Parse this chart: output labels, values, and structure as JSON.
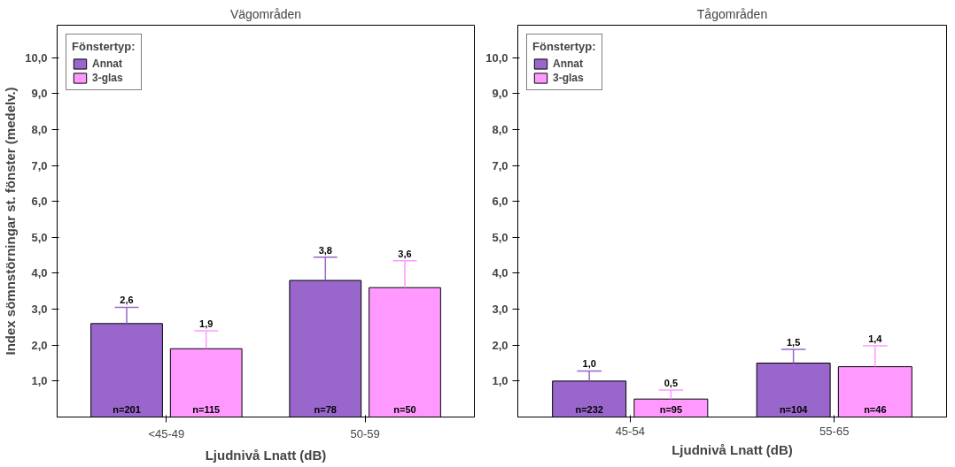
{
  "chart_data": [
    {
      "type": "bar",
      "title": "Vägområden",
      "xlabel": "Ljudnivå Lnatt (dB)",
      "ylabel": "Index sömnstörningar st. fönster (medelv.)",
      "legend_title": "Fönstertyp:",
      "legend": "top left",
      "grid": false,
      "categories": [
        "<45-49",
        "50-59"
      ],
      "ylim": [
        0,
        10.9
      ],
      "yticks": [
        {
          "value": 1,
          "label": "1,0"
        },
        {
          "value": 2,
          "label": "2,0"
        },
        {
          "value": 3,
          "label": "3,0"
        },
        {
          "value": 4,
          "label": "4,0"
        },
        {
          "value": 5,
          "label": "5,0"
        },
        {
          "value": 6,
          "label": "6,0"
        },
        {
          "value": 7,
          "label": "7,0"
        },
        {
          "value": 8,
          "label": "8,0"
        },
        {
          "value": 9,
          "label": "9,0"
        },
        {
          "value": 10,
          "label": "10,0"
        }
      ],
      "series": [
        {
          "name": "Annat",
          "color": "#9966cc",
          "values": [
            2.6,
            3.8
          ],
          "value_labels": [
            "2,6",
            "3,8"
          ],
          "errors": [
            [
              2.6,
              3.05
            ],
            [
              3.8,
              4.45
            ]
          ]
        },
        {
          "name": "3-glas",
          "color": "#ff99ff",
          "values": [
            1.9,
            3.6
          ],
          "value_labels": [
            "1,9",
            "3,6"
          ],
          "errors": [
            [
              1.9,
              2.4
            ],
            [
              3.6,
              4.35
            ]
          ]
        }
      ],
      "annotations": [
        "n=201",
        "n=115",
        "n=78",
        "n=50"
      ]
    },
    {
      "type": "bar",
      "title": "Tågområden",
      "xlabel": "Ljudnivå Lnatt (dB)",
      "legend_title": "Fönstertyp:",
      "legend": "top left",
      "grid": false,
      "categories": [
        "45-54",
        "55-65"
      ],
      "ylim": [
        0,
        10.9
      ],
      "yticks": [
        {
          "value": 1,
          "label": "1,0"
        },
        {
          "value": 2,
          "label": "2,0"
        },
        {
          "value": 3,
          "label": "3,0"
        },
        {
          "value": 4,
          "label": "4,0"
        },
        {
          "value": 5,
          "label": "5,0"
        },
        {
          "value": 6,
          "label": "6,0"
        },
        {
          "value": 7,
          "label": "7,0"
        },
        {
          "value": 8,
          "label": "8,0"
        },
        {
          "value": 9,
          "label": "9,0"
        },
        {
          "value": 10,
          "label": "10,0"
        }
      ],
      "series": [
        {
          "name": "Annat",
          "color": "#9966cc",
          "values": [
            1.0,
            1.5
          ],
          "value_labels": [
            "1,0",
            "1,5"
          ],
          "errors": [
            [
              1.0,
              1.28
            ],
            [
              1.5,
              1.88
            ]
          ]
        },
        {
          "name": "3-glas",
          "color": "#ff99ff",
          "values": [
            0.5,
            1.4
          ],
          "value_labels": [
            "0,5",
            "1,4"
          ],
          "errors": [
            [
              0.5,
              0.75
            ],
            [
              1.4,
              1.98
            ]
          ]
        }
      ],
      "annotations": [
        "n=232",
        "n=95",
        "n=104",
        "n=46"
      ]
    }
  ]
}
